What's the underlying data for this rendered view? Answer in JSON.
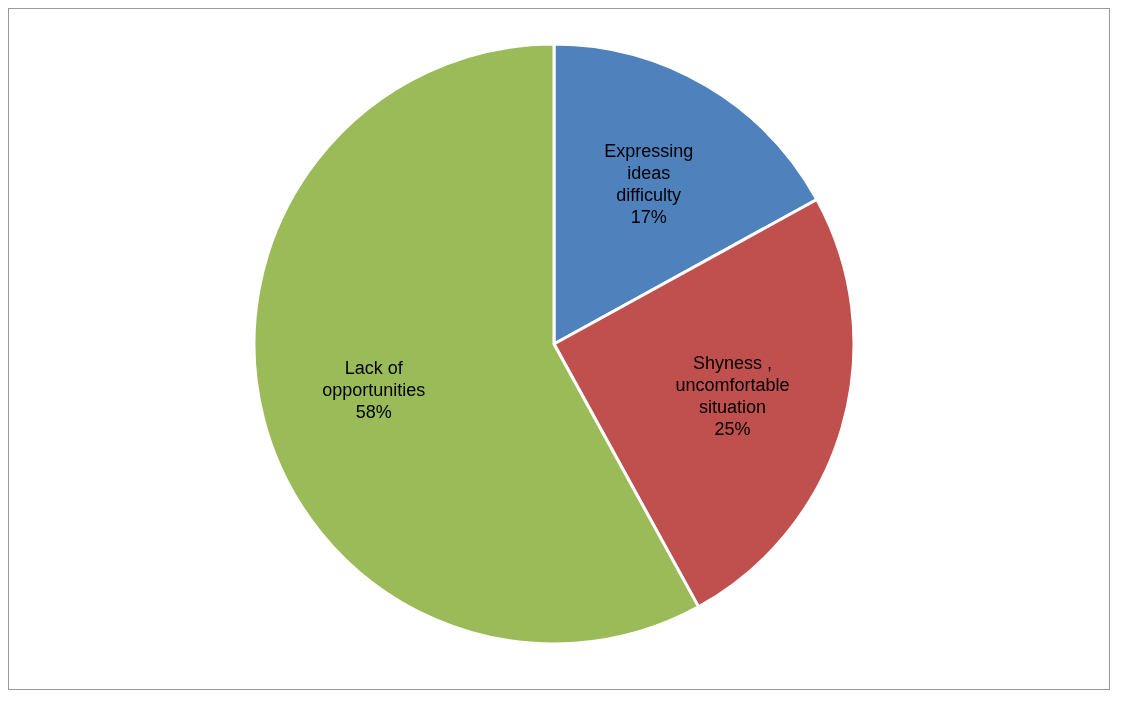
{
  "chart_data": {
    "type": "pie",
    "categories": [
      "Expressing ideas difficulty",
      "Shyness , uncomfortable situation",
      "Lack of opportunities"
    ],
    "values": [
      17,
      25,
      58
    ],
    "colors": [
      "#4f81bd",
      "#c0504d",
      "#9bbb59"
    ],
    "value_labels": [
      "17%",
      "25%",
      "58%"
    ],
    "legend": false
  }
}
